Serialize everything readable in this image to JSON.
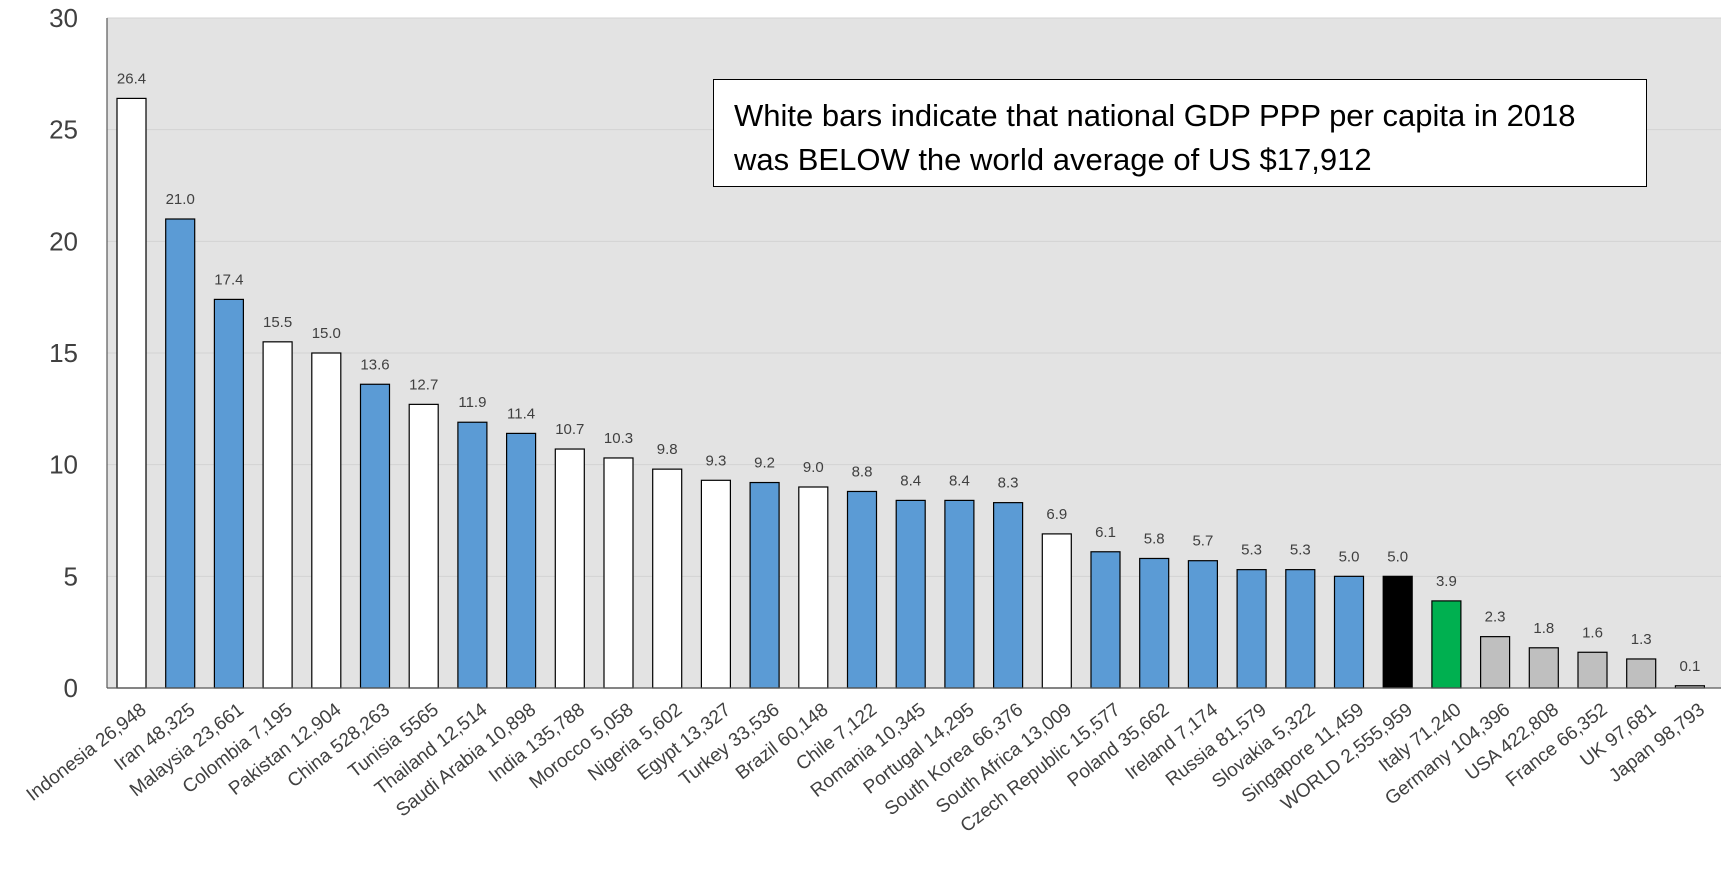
{
  "chart_data": {
    "type": "bar",
    "title": "",
    "xlabel": "",
    "ylabel": "",
    "ylim": [
      0,
      30
    ],
    "yticks": [
      "0",
      "5",
      "10",
      "15",
      "20",
      "25",
      "30"
    ],
    "grid": true,
    "annotation": "White bars indicate that national GDP PPP per capita in 2018 was BELOW the world average of US $17,912",
    "colors": {
      "plot_background": "#e3e3e3",
      "below_world_average": "#ffffff",
      "above_world_average": "#5b9bd5",
      "world": "#000000",
      "italy": "#00b050",
      "other": "#bfbfbf"
    },
    "categories": [
      "Indonesia 26,948",
      "Iran 48,325",
      "Malaysia 23,661",
      "Colombia 7,195",
      "Pakistan 12,904",
      "China 528,263",
      "Tunisia 5565",
      "Thailand 12,514",
      "Saudi Arabia 10,898",
      "India 135,788",
      "Morocco 5,058",
      "Nigeria 5,602",
      "Egypt 13,327",
      "Turkey 33,536",
      "Brazil 60,148",
      "Chile 7,122",
      "Romania 10,345",
      "Portugal 14,295",
      "South Korea 66,376",
      "South Africa 13,009",
      "Czech Republic 15,577",
      "Poland 35,662",
      "Ireland 7,174",
      "Russia 81,579",
      "Slovakia 5,322",
      "Singapore 11,459",
      "WORLD 2,555,959",
      "Italy 71,240",
      "Germany 104,396",
      "USA 422,808",
      "France 66,352",
      "UK 97,681",
      "Japan 98,793"
    ],
    "values": [
      26.4,
      21.0,
      17.4,
      15.5,
      15.0,
      13.6,
      12.7,
      11.9,
      11.4,
      10.7,
      10.3,
      9.8,
      9.3,
      9.2,
      9.0,
      8.8,
      8.4,
      8.4,
      8.3,
      6.9,
      6.1,
      5.8,
      5.7,
      5.3,
      5.3,
      5.0,
      5.0,
      3.9,
      2.3,
      1.8,
      1.6,
      1.3,
      0.1
    ],
    "data_labels": [
      "26.4",
      "21.0",
      "17.4",
      "15.5",
      "15.0",
      "13.6",
      "12.7",
      "11.9",
      "11.4",
      "10.7",
      "10.3",
      "9.8",
      "9.3",
      "9.2",
      "9.0",
      "8.8",
      "8.4",
      "8.4",
      "8.3",
      "6.9",
      "6.1",
      "5.8",
      "5.7",
      "5.3",
      "5.3",
      "5.0",
      "5.0",
      "3.9",
      "2.3",
      "1.8",
      "1.6",
      "1.3",
      "0.1"
    ],
    "bar_groups": [
      "below",
      "above",
      "above",
      "below",
      "below",
      "above",
      "below",
      "above",
      "above",
      "below",
      "below",
      "below",
      "below",
      "above",
      "below",
      "above",
      "above",
      "above",
      "above",
      "below",
      "above",
      "above",
      "above",
      "above",
      "above",
      "above",
      "world",
      "italy",
      "other",
      "other",
      "other",
      "other",
      "other"
    ]
  }
}
